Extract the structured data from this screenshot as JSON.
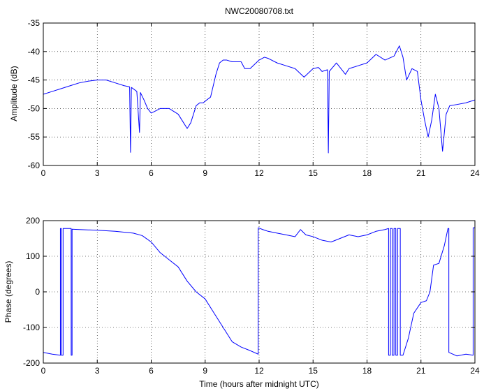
{
  "chart_data": [
    {
      "type": "line",
      "title": "NWC20080708.txt",
      "xlabel": "",
      "ylabel": "Amplitude (dB)",
      "xlim": [
        0,
        24
      ],
      "ylim": [
        -60,
        -35
      ],
      "xticks": [
        0,
        3,
        6,
        9,
        12,
        15,
        18,
        21,
        24
      ],
      "yticks": [
        -60,
        -55,
        -50,
        -45,
        -40,
        -35
      ],
      "grid": true,
      "color": "#0000ff",
      "series": [
        {
          "x": [
            0,
            0.5,
            1,
            1.5,
            2,
            2.5,
            3,
            3.5,
            4,
            4.5,
            4.8,
            4.85,
            4.9,
            5.2,
            5.35,
            5.4,
            5.6,
            5.8,
            6.0,
            6.2,
            6.5,
            7.0,
            7.5,
            7.8,
            8.0,
            8.2,
            8.5,
            8.7,
            8.9,
            9.0,
            9.3,
            9.6,
            9.8,
            10.0,
            10.2,
            10.5,
            11.0,
            11.2,
            11.5,
            12.0,
            12.3,
            12.5,
            13.0,
            13.5,
            14.0,
            14.5,
            15.0,
            15.3,
            15.5,
            15.8,
            15.85,
            15.9,
            16.3,
            16.8,
            17.0,
            17.5,
            18.0,
            18.5,
            19.0,
            19.5,
            19.8,
            20.0,
            20.2,
            20.5,
            20.8,
            21.0,
            21.2,
            21.4,
            21.6,
            21.8,
            22.0,
            22.2,
            22.4,
            22.6,
            23.0,
            23.5,
            24.0
          ],
          "y": [
            -47.5,
            -47,
            -46.5,
            -46,
            -45.5,
            -45.2,
            -45,
            -45,
            -45.5,
            -46,
            -46.2,
            -57.7,
            -46.3,
            -47,
            -54.2,
            -47.2,
            -48.5,
            -50,
            -50.8,
            -50.5,
            -50,
            -50,
            -51,
            -52.5,
            -53.5,
            -52.5,
            -49.5,
            -49,
            -49,
            -48.7,
            -48,
            -44,
            -42,
            -41.5,
            -41.5,
            -41.8,
            -41.8,
            -43,
            -43,
            -41.5,
            -41,
            -41.2,
            -42,
            -42.5,
            -43,
            -44.5,
            -43,
            -42.8,
            -43.5,
            -43.2,
            -57.8,
            -43.5,
            -42,
            -44,
            -43,
            -42.5,
            -42,
            -40.5,
            -41.5,
            -40.8,
            -39,
            -41,
            -45,
            -43,
            -43.5,
            -48.5,
            -52,
            -55,
            -52,
            -47.5,
            -50,
            -57.5,
            -51,
            -49.5,
            -49.3,
            -49,
            -48.5
          ]
        }
      ]
    },
    {
      "type": "line",
      "title": "",
      "xlabel": "Time (hours after midnight UTC)",
      "ylabel": "Phase (degrees)",
      "xlim": [
        0,
        24
      ],
      "ylim": [
        -200,
        200
      ],
      "xticks": [
        0,
        3,
        6,
        9,
        12,
        15,
        18,
        21,
        24
      ],
      "yticks": [
        -200,
        -100,
        0,
        100,
        200
      ],
      "grid": true,
      "color": "#0000ff",
      "series": [
        {
          "x": [
            0,
            0.5,
            0.95,
            0.95,
            1.0,
            1.0,
            1.1,
            1.1,
            1.55,
            1.55,
            1.6,
            1.6,
            2,
            3,
            4,
            5,
            5.5,
            6.0,
            6.5,
            7.0,
            7.5,
            8.0,
            8.5,
            9.0,
            9.5,
            10.0,
            10.5,
            11.0,
            11.5,
            11.95,
            11.95,
            12.2,
            12.5,
            13.0,
            13.5,
            14.0,
            14.3,
            14.6,
            15.0,
            15.5,
            16.0,
            16.5,
            17.0,
            17.5,
            18.0,
            18.5,
            19.0,
            19.2,
            19.2,
            19.3,
            19.3,
            19.4,
            19.4,
            19.5,
            19.5,
            19.6,
            19.6,
            19.7,
            19.7,
            19.85,
            19.85,
            20.0,
            20.3,
            20.6,
            21.0,
            21.3,
            21.5,
            21.7,
            22.0,
            22.3,
            22.5,
            22.55,
            22.55,
            23.0,
            23.5,
            23.9,
            23.9,
            24.0
          ],
          "y": [
            -170,
            -175,
            -178,
            178,
            178,
            -178,
            -178,
            178,
            178,
            -178,
            -178,
            176,
            175,
            173,
            170,
            165,
            158,
            140,
            110,
            90,
            70,
            30,
            0,
            -20,
            -60,
            -100,
            -140,
            -155,
            -165,
            -175,
            180,
            175,
            170,
            165,
            160,
            155,
            175,
            160,
            155,
            145,
            140,
            150,
            160,
            155,
            160,
            170,
            175,
            178,
            -178,
            -178,
            178,
            178,
            -178,
            -178,
            178,
            178,
            -178,
            -178,
            178,
            178,
            -178,
            -178,
            -130,
            -60,
            -30,
            -25,
            0,
            75,
            80,
            130,
            178,
            178,
            -170,
            -180,
            -175,
            -178,
            180,
            180
          ]
        }
      ]
    }
  ]
}
